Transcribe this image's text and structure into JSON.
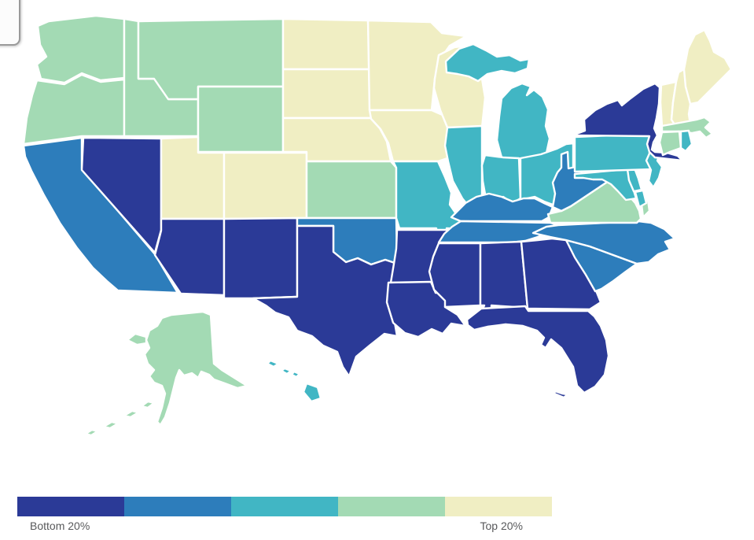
{
  "legend": {
    "min_label": "Bottom 20%",
    "max_label": "Top 20%"
  },
  "chart_data": {
    "type": "heatmap",
    "subtype": "us-states-choropleth",
    "buckets": 5,
    "bucket_meaning": "quintile rank shown by color; 1 = Bottom 20%, 5 = Top 20%",
    "legend_min_label": "Bottom 20%",
    "legend_max_label": "Top 20%",
    "palette": [
      "#2b3a97",
      "#2d7dbb",
      "#41b6c4",
      "#a3dab4",
      "#f0eec3"
    ],
    "states": [
      {
        "code": "WA",
        "name": "Washington",
        "bucket": 4
      },
      {
        "code": "OR",
        "name": "Oregon",
        "bucket": 4
      },
      {
        "code": "CA",
        "name": "California",
        "bucket": 2
      },
      {
        "code": "NV",
        "name": "Nevada",
        "bucket": 1
      },
      {
        "code": "ID",
        "name": "Idaho",
        "bucket": 4
      },
      {
        "code": "MT",
        "name": "Montana",
        "bucket": 4
      },
      {
        "code": "WY",
        "name": "Wyoming",
        "bucket": 4
      },
      {
        "code": "UT",
        "name": "Utah",
        "bucket": 5
      },
      {
        "code": "CO",
        "name": "Colorado",
        "bucket": 5
      },
      {
        "code": "AZ",
        "name": "Arizona",
        "bucket": 1
      },
      {
        "code": "NM",
        "name": "New Mexico",
        "bucket": 1
      },
      {
        "code": "ND",
        "name": "North Dakota",
        "bucket": 5
      },
      {
        "code": "SD",
        "name": "South Dakota",
        "bucket": 5
      },
      {
        "code": "NE",
        "name": "Nebraska",
        "bucket": 5
      },
      {
        "code": "KS",
        "name": "Kansas",
        "bucket": 4
      },
      {
        "code": "OK",
        "name": "Oklahoma",
        "bucket": 2
      },
      {
        "code": "TX",
        "name": "Texas",
        "bucket": 1
      },
      {
        "code": "MN",
        "name": "Minnesota",
        "bucket": 5
      },
      {
        "code": "IA",
        "name": "Iowa",
        "bucket": 5
      },
      {
        "code": "MO",
        "name": "Missouri",
        "bucket": 3
      },
      {
        "code": "AR",
        "name": "Arkansas",
        "bucket": 1
      },
      {
        "code": "LA",
        "name": "Louisiana",
        "bucket": 1
      },
      {
        "code": "WI",
        "name": "Wisconsin",
        "bucket": 5
      },
      {
        "code": "IL",
        "name": "Illinois",
        "bucket": 3
      },
      {
        "code": "MI",
        "name": "Michigan",
        "bucket": 3
      },
      {
        "code": "IN",
        "name": "Indiana",
        "bucket": 3
      },
      {
        "code": "OH",
        "name": "Ohio",
        "bucket": 3
      },
      {
        "code": "KY",
        "name": "Kentucky",
        "bucket": 2
      },
      {
        "code": "TN",
        "name": "Tennessee",
        "bucket": 2
      },
      {
        "code": "MS",
        "name": "Mississippi",
        "bucket": 1
      },
      {
        "code": "AL",
        "name": "Alabama",
        "bucket": 1
      },
      {
        "code": "GA",
        "name": "Georgia",
        "bucket": 1
      },
      {
        "code": "FL",
        "name": "Florida",
        "bucket": 1
      },
      {
        "code": "SC",
        "name": "South Carolina",
        "bucket": 2
      },
      {
        "code": "NC",
        "name": "North Carolina",
        "bucket": 2
      },
      {
        "code": "VA",
        "name": "Virginia",
        "bucket": 4
      },
      {
        "code": "WV",
        "name": "West Virginia",
        "bucket": 2
      },
      {
        "code": "MD",
        "name": "Maryland",
        "bucket": 3
      },
      {
        "code": "DE",
        "name": "Delaware",
        "bucket": 3
      },
      {
        "code": "PA",
        "name": "Pennsylvania",
        "bucket": 3
      },
      {
        "code": "NJ",
        "name": "New Jersey",
        "bucket": 3
      },
      {
        "code": "NY",
        "name": "New York",
        "bucket": 1
      },
      {
        "code": "VT",
        "name": "Vermont",
        "bucket": 5
      },
      {
        "code": "NH",
        "name": "New Hampshire",
        "bucket": 5
      },
      {
        "code": "ME",
        "name": "Maine",
        "bucket": 5
      },
      {
        "code": "MA",
        "name": "Massachusetts",
        "bucket": 4
      },
      {
        "code": "CT",
        "name": "Connecticut",
        "bucket": 4
      },
      {
        "code": "RI",
        "name": "Rhode Island",
        "bucket": 3
      },
      {
        "code": "AK",
        "name": "Alaska",
        "bucket": 4
      },
      {
        "code": "HI",
        "name": "Hawaii",
        "bucket": 3
      }
    ]
  }
}
